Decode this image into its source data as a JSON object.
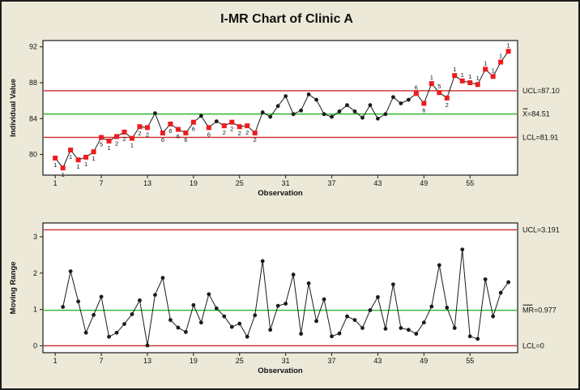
{
  "title": "I-MR Chart of Clinic A",
  "colors": {
    "background": "#ece9d8",
    "plot_background": "#ffffff",
    "frame": "#1c1c1c",
    "limit_line": "#cc2a2a",
    "center_line": "#2eb82e",
    "series_line": "#1a1a1a",
    "point": "#1a1a1a",
    "special_point": "#ee1c1c",
    "text": "#111111"
  },
  "chart_data": [
    {
      "type": "line",
      "name": "individuals-chart",
      "ylabel": "Individual Value",
      "xlabel": "Observation",
      "yticks": [
        80,
        84,
        88,
        92
      ],
      "xticks": [
        1,
        7,
        13,
        19,
        25,
        31,
        37,
        43,
        49,
        55
      ],
      "ylim": [
        77.7,
        92.7
      ],
      "xlim": [
        -0.6,
        61.2
      ],
      "grid": false,
      "legend": "none",
      "lines": {
        "ucl": {
          "value": 87.1,
          "label": "UCL=87.10"
        },
        "center": {
          "value": 84.51,
          "label": "X=84.51",
          "overbar": "X"
        },
        "lcl": {
          "value": 81.91,
          "label": "LCL=81.91"
        }
      },
      "point_fields": [
        "observation",
        "value",
        "special_cause",
        "test_label",
        "label_position"
      ],
      "points": [
        [
          1,
          79.6,
          1,
          "1",
          "below"
        ],
        [
          2,
          78.5,
          1,
          "1",
          "below"
        ],
        [
          3,
          80.5,
          1,
          "1",
          "below"
        ],
        [
          4,
          79.4,
          1,
          "1",
          "below"
        ],
        [
          5,
          79.7,
          1,
          "1",
          "below"
        ],
        [
          6,
          80.3,
          1,
          "1",
          "below"
        ],
        [
          7,
          81.9,
          1,
          "5",
          "below"
        ],
        [
          8,
          81.5,
          1,
          "1",
          "below"
        ],
        [
          9,
          82.0,
          1,
          "2",
          "below"
        ],
        [
          10,
          82.5,
          1,
          "2",
          "below"
        ],
        [
          11,
          81.8,
          1,
          "1",
          "below"
        ],
        [
          12,
          83.1,
          1,
          "2",
          "below"
        ],
        [
          13,
          83.0,
          1,
          "2",
          "below"
        ],
        [
          14,
          84.6,
          0,
          "",
          ""
        ],
        [
          15,
          82.4,
          1,
          "6",
          "below"
        ],
        [
          16,
          83.4,
          1,
          "6",
          "below"
        ],
        [
          17,
          82.8,
          1,
          "6",
          "below"
        ],
        [
          18,
          82.4,
          1,
          "6",
          "below"
        ],
        [
          19,
          83.6,
          1,
          "6",
          "below"
        ],
        [
          20,
          84.3,
          0,
          "",
          ""
        ],
        [
          21,
          83.0,
          1,
          "6",
          "below"
        ],
        [
          22,
          83.7,
          0,
          "",
          ""
        ],
        [
          23,
          83.2,
          1,
          "2",
          "below"
        ],
        [
          24,
          83.6,
          1,
          "2",
          "below"
        ],
        [
          25,
          83.1,
          1,
          "2",
          "below"
        ],
        [
          26,
          83.2,
          1,
          "2",
          "below"
        ],
        [
          27,
          82.4,
          1,
          "2",
          "below"
        ],
        [
          28,
          84.7,
          0,
          "",
          ""
        ],
        [
          29,
          84.2,
          0,
          "",
          ""
        ],
        [
          30,
          85.4,
          0,
          "",
          ""
        ],
        [
          31,
          86.5,
          0,
          "",
          ""
        ],
        [
          32,
          84.5,
          0,
          "",
          ""
        ],
        [
          33,
          84.9,
          0,
          "",
          ""
        ],
        [
          34,
          86.7,
          0,
          "",
          ""
        ],
        [
          35,
          86.1,
          0,
          "",
          ""
        ],
        [
          36,
          84.5,
          0,
          "",
          ""
        ],
        [
          37,
          84.2,
          0,
          "",
          ""
        ],
        [
          38,
          84.8,
          0,
          "",
          ""
        ],
        [
          39,
          85.5,
          0,
          "",
          ""
        ],
        [
          40,
          84.8,
          0,
          "",
          ""
        ],
        [
          41,
          84.1,
          0,
          "",
          ""
        ],
        [
          42,
          85.5,
          0,
          "",
          ""
        ],
        [
          43,
          84.0,
          0,
          "",
          ""
        ],
        [
          44,
          84.5,
          0,
          "",
          ""
        ],
        [
          45,
          86.4,
          0,
          "",
          ""
        ],
        [
          46,
          85.7,
          0,
          "",
          ""
        ],
        [
          47,
          86.1,
          0,
          "",
          ""
        ],
        [
          48,
          86.8,
          1,
          "6",
          "above"
        ],
        [
          49,
          85.7,
          1,
          "6",
          "below"
        ],
        [
          50,
          87.9,
          1,
          "1",
          "above"
        ],
        [
          51,
          86.9,
          1,
          "5",
          "above"
        ],
        [
          52,
          86.3,
          1,
          "2",
          "below"
        ],
        [
          53,
          88.8,
          1,
          "1",
          "above"
        ],
        [
          54,
          88.2,
          1,
          "1",
          "above"
        ],
        [
          55,
          88.0,
          1,
          "1",
          "above"
        ],
        [
          56,
          87.8,
          1,
          "1",
          "above"
        ],
        [
          57,
          89.5,
          1,
          "1",
          "above"
        ],
        [
          58,
          88.7,
          1,
          "1",
          "above"
        ],
        [
          59,
          90.3,
          1,
          "1",
          "above"
        ],
        [
          60,
          91.5,
          1,
          "1",
          "above"
        ]
      ]
    },
    {
      "type": "line",
      "name": "moving-range-chart",
      "ylabel": "Moving Range",
      "xlabel": "Observation",
      "yticks": [
        0,
        1,
        2,
        3
      ],
      "xticks": [
        1,
        7,
        13,
        19,
        25,
        31,
        37,
        43,
        49,
        55
      ],
      "ylim": [
        -0.19,
        3.38
      ],
      "xlim": [
        -0.6,
        61.2
      ],
      "grid": false,
      "legend": "none",
      "lines": {
        "ucl": {
          "value": 3.191,
          "label": "UCL=3.191"
        },
        "center": {
          "value": 0.977,
          "label": "MR=0.977",
          "overbar": "MR"
        },
        "lcl": {
          "value": 0,
          "label": "LCL=0"
        }
      },
      "point_fields": [
        "observation",
        "value",
        "special_cause",
        "test_label",
        "label_position"
      ],
      "points": [
        [
          2,
          1.07,
          0,
          "",
          ""
        ],
        [
          3,
          2.05,
          0,
          "",
          ""
        ],
        [
          4,
          1.22,
          0,
          "",
          ""
        ],
        [
          5,
          0.36,
          0,
          "",
          ""
        ],
        [
          6,
          0.85,
          0,
          "",
          ""
        ],
        [
          7,
          1.35,
          0,
          "",
          ""
        ],
        [
          8,
          0.25,
          0,
          "",
          ""
        ],
        [
          9,
          0.36,
          0,
          "",
          ""
        ],
        [
          10,
          0.6,
          0,
          "",
          ""
        ],
        [
          11,
          0.87,
          0,
          "",
          ""
        ],
        [
          12,
          1.25,
          0,
          "",
          ""
        ],
        [
          13,
          0.01,
          0,
          "",
          ""
        ],
        [
          14,
          1.4,
          0,
          "",
          ""
        ],
        [
          15,
          1.87,
          0,
          "",
          ""
        ],
        [
          16,
          0.71,
          0,
          "",
          ""
        ],
        [
          17,
          0.5,
          0,
          "",
          ""
        ],
        [
          18,
          0.38,
          0,
          "",
          ""
        ],
        [
          19,
          1.12,
          0,
          "",
          ""
        ],
        [
          20,
          0.64,
          0,
          "",
          ""
        ],
        [
          21,
          1.42,
          0,
          "",
          ""
        ],
        [
          22,
          1.03,
          0,
          "",
          ""
        ],
        [
          23,
          0.81,
          0,
          "",
          ""
        ],
        [
          24,
          0.52,
          0,
          "",
          ""
        ],
        [
          25,
          0.61,
          0,
          "",
          ""
        ],
        [
          26,
          0.25,
          0,
          "",
          ""
        ],
        [
          27,
          0.84,
          0,
          "",
          ""
        ],
        [
          28,
          2.33,
          0,
          "",
          ""
        ],
        [
          29,
          0.44,
          0,
          "",
          ""
        ],
        [
          30,
          1.1,
          0,
          "",
          ""
        ],
        [
          31,
          1.16,
          0,
          "",
          ""
        ],
        [
          32,
          1.96,
          0,
          "",
          ""
        ],
        [
          33,
          0.33,
          0,
          "",
          ""
        ],
        [
          34,
          1.72,
          0,
          "",
          ""
        ],
        [
          35,
          0.68,
          0,
          "",
          ""
        ],
        [
          36,
          1.28,
          0,
          "",
          ""
        ],
        [
          37,
          0.26,
          0,
          "",
          ""
        ],
        [
          38,
          0.34,
          0,
          "",
          ""
        ],
        [
          39,
          0.81,
          0,
          "",
          ""
        ],
        [
          40,
          0.71,
          0,
          "",
          ""
        ],
        [
          41,
          0.49,
          0,
          "",
          ""
        ],
        [
          42,
          0.98,
          0,
          "",
          ""
        ],
        [
          43,
          1.34,
          0,
          "",
          ""
        ],
        [
          44,
          0.47,
          0,
          "",
          ""
        ],
        [
          45,
          1.69,
          0,
          "",
          ""
        ],
        [
          46,
          0.49,
          0,
          "",
          ""
        ],
        [
          47,
          0.44,
          0,
          "",
          ""
        ],
        [
          48,
          0.33,
          0,
          "",
          ""
        ],
        [
          49,
          0.64,
          0,
          "",
          ""
        ],
        [
          50,
          1.08,
          0,
          "",
          ""
        ],
        [
          51,
          2.22,
          0,
          "",
          ""
        ],
        [
          52,
          1.05,
          0,
          "",
          ""
        ],
        [
          53,
          0.49,
          0,
          "",
          ""
        ],
        [
          54,
          2.65,
          0,
          "",
          ""
        ],
        [
          55,
          0.26,
          0,
          "",
          ""
        ],
        [
          56,
          0.19,
          0,
          "",
          ""
        ],
        [
          57,
          1.83,
          0,
          "",
          ""
        ],
        [
          58,
          0.81,
          0,
          "",
          ""
        ],
        [
          59,
          1.46,
          0,
          "",
          ""
        ],
        [
          60,
          1.75,
          0,
          "",
          ""
        ]
      ]
    }
  ]
}
